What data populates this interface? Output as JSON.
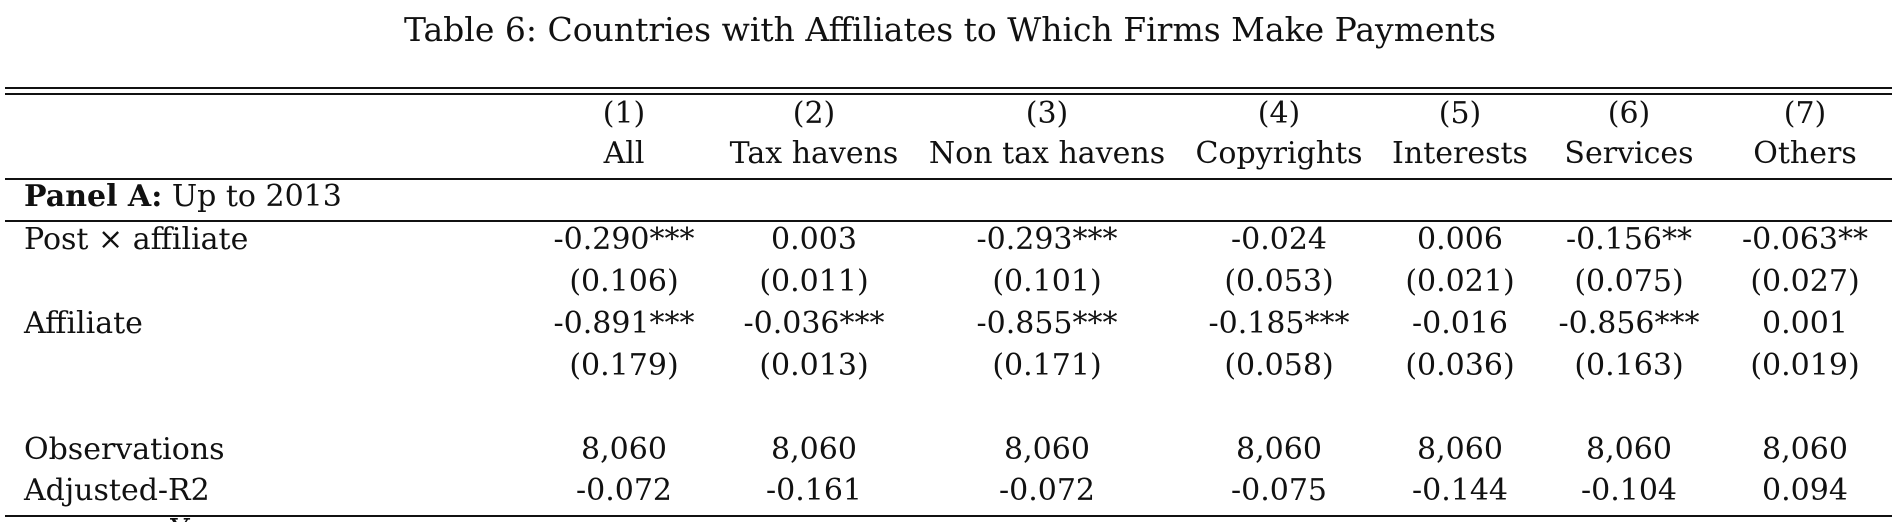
{
  "caption": "Table 6: Countries with Affiliates to Which Firms Make Payments",
  "columns": [
    {
      "num": "(1)",
      "label": "All"
    },
    {
      "num": "(2)",
      "label": "Tax havens"
    },
    {
      "num": "(3)",
      "label": "Non tax havens"
    },
    {
      "num": "(4)",
      "label": "Copyrights"
    },
    {
      "num": "(5)",
      "label": "Interests"
    },
    {
      "num": "(6)",
      "label": "Services"
    },
    {
      "num": "(7)",
      "label": "Others"
    }
  ],
  "panel": {
    "bold": "Panel A:",
    "rest": "Up to 2013"
  },
  "rows": {
    "post_affiliate": {
      "label": "Post × affiliate",
      "coef": [
        "-0.290***",
        "0.003",
        "-0.293***",
        "-0.024",
        "0.006",
        "-0.156**",
        "-0.063**"
      ],
      "se": [
        "(0.106)",
        "(0.011)",
        "(0.101)",
        "(0.053)",
        "(0.021)",
        "(0.075)",
        "(0.027)"
      ]
    },
    "affiliate": {
      "label": "Affiliate",
      "coef": [
        "-0.891***",
        "-0.036***",
        "-0.855***",
        "-0.185***",
        "-0.016",
        "-0.856***",
        "0.001"
      ],
      "se": [
        "(0.179)",
        "(0.013)",
        "(0.171)",
        "(0.058)",
        "(0.036)",
        "(0.163)",
        "(0.019)"
      ]
    },
    "observations": {
      "label": "Observations",
      "values": [
        "8,060",
        "8,060",
        "8,060",
        "8,060",
        "8,060",
        "8,060",
        "8,060"
      ]
    },
    "adjusted_r2": {
      "label": "Adjusted-R2",
      "values": [
        "-0.072",
        "-0.161",
        "-0.072",
        "-0.075",
        "-0.144",
        "-0.104",
        "0.094"
      ]
    }
  },
  "cut_off_text": "Y"
}
